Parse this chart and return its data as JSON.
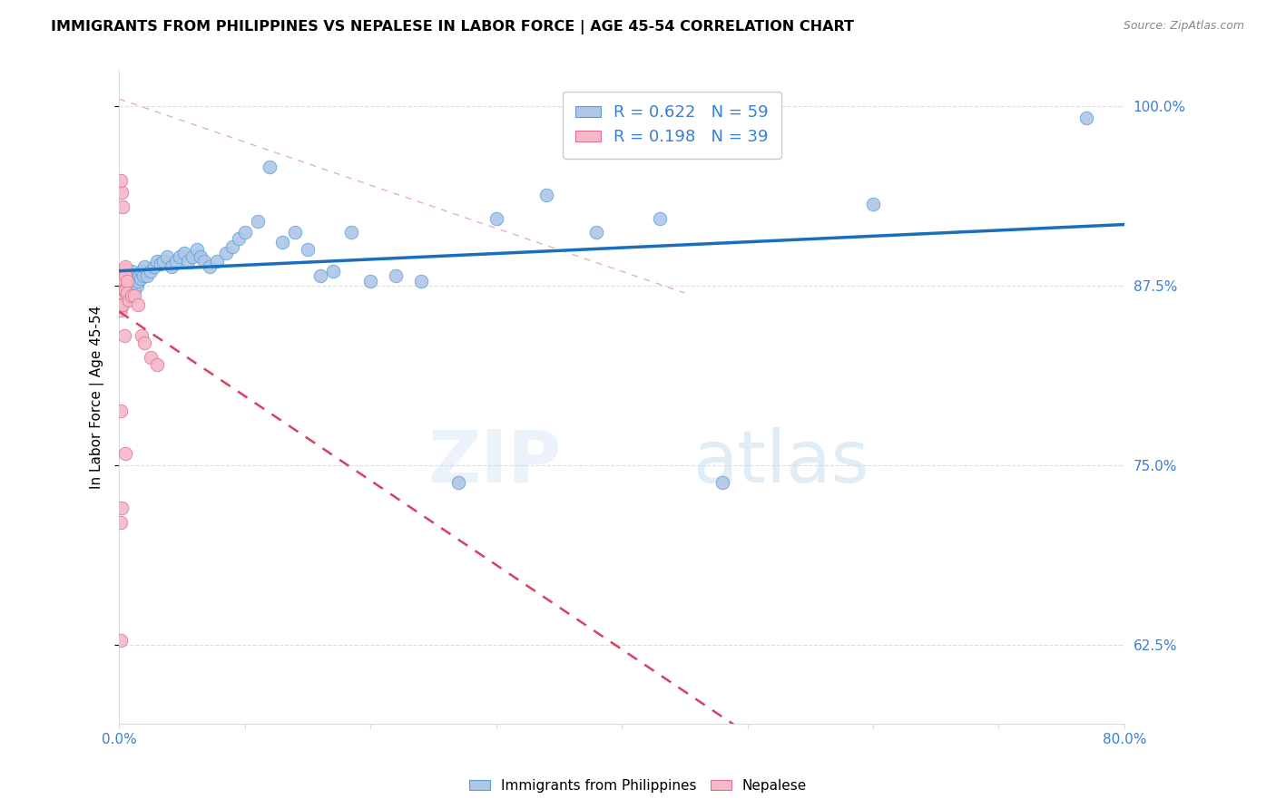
{
  "title": "IMMIGRANTS FROM PHILIPPINES VS NEPALESE IN LABOR FORCE | AGE 45-54 CORRELATION CHART",
  "source": "Source: ZipAtlas.com",
  "ylabel": "In Labor Force | Age 45-54",
  "xlim": [
    0.0,
    0.8
  ],
  "ylim": [
    0.57,
    1.025
  ],
  "yticks": [
    0.625,
    0.75,
    0.875,
    1.0
  ],
  "ytick_labels": [
    "62.5%",
    "75.0%",
    "87.5%",
    "100.0%"
  ],
  "xtick_positions": [
    0.0,
    0.1,
    0.2,
    0.3,
    0.4,
    0.5,
    0.6,
    0.7,
    0.8
  ],
  "xtick_labels": [
    "0.0%",
    "",
    "",
    "",
    "",
    "",
    "",
    "",
    "80.0%"
  ],
  "blue_R": 0.622,
  "blue_N": 59,
  "pink_R": 0.198,
  "pink_N": 39,
  "blue_scatter_color": "#aec6e8",
  "blue_edge_color": "#5a9fd4",
  "pink_scatter_color": "#f5b8c8",
  "pink_edge_color": "#e07090",
  "blue_line_color": "#1a6fbd",
  "pink_line_color": "#d94060",
  "diag_line_color": "#e8b0b8",
  "grid_color": "#dddddd",
  "legend_label_blue": "Immigrants from Philippines",
  "legend_label_pink": "Nepalese",
  "blue_x": [
    0.003,
    0.004,
    0.005,
    0.006,
    0.007,
    0.008,
    0.009,
    0.01,
    0.011,
    0.012,
    0.013,
    0.014,
    0.015,
    0.016,
    0.017,
    0.018,
    0.019,
    0.02,
    0.022,
    0.025,
    0.028,
    0.03,
    0.033,
    0.035,
    0.038,
    0.042,
    0.045,
    0.048,
    0.052,
    0.055,
    0.058,
    0.062,
    0.065,
    0.068,
    0.072,
    0.078,
    0.085,
    0.09,
    0.095,
    0.1,
    0.11,
    0.12,
    0.13,
    0.14,
    0.15,
    0.16,
    0.17,
    0.185,
    0.2,
    0.22,
    0.24,
    0.27,
    0.3,
    0.34,
    0.38,
    0.43,
    0.48,
    0.6,
    0.77
  ],
  "blue_y": [
    0.878,
    0.88,
    0.875,
    0.872,
    0.878,
    0.88,
    0.883,
    0.885,
    0.878,
    0.872,
    0.88,
    0.875,
    0.878,
    0.882,
    0.88,
    0.885,
    0.882,
    0.888,
    0.882,
    0.885,
    0.888,
    0.892,
    0.89,
    0.892,
    0.895,
    0.888,
    0.892,
    0.895,
    0.898,
    0.892,
    0.895,
    0.9,
    0.895,
    0.892,
    0.888,
    0.892,
    0.898,
    0.902,
    0.908,
    0.912,
    0.92,
    0.958,
    0.905,
    0.912,
    0.9,
    0.882,
    0.885,
    0.912,
    0.878,
    0.882,
    0.878,
    0.738,
    0.922,
    0.938,
    0.912,
    0.922,
    0.738,
    0.932,
    0.992
  ],
  "pink_x": [
    0.001,
    0.001,
    0.001,
    0.001,
    0.001,
    0.002,
    0.002,
    0.002,
    0.002,
    0.002,
    0.003,
    0.003,
    0.003,
    0.003,
    0.004,
    0.004,
    0.004,
    0.005,
    0.005,
    0.005,
    0.006,
    0.006,
    0.008,
    0.01,
    0.012,
    0.015,
    0.018,
    0.02,
    0.025,
    0.03,
    0.003,
    0.004,
    0.005,
    0.002,
    0.002,
    0.001,
    0.001,
    0.001,
    0.001
  ],
  "pink_y": [
    0.882,
    0.878,
    0.873,
    0.868,
    0.858,
    0.885,
    0.88,
    0.875,
    0.87,
    0.862,
    0.88,
    0.875,
    0.87,
    0.862,
    0.885,
    0.878,
    0.872,
    0.888,
    0.882,
    0.872,
    0.878,
    0.87,
    0.865,
    0.868,
    0.868,
    0.862,
    0.84,
    0.835,
    0.825,
    0.82,
    0.93,
    0.84,
    0.758,
    0.94,
    0.72,
    0.948,
    0.788,
    0.71,
    0.628
  ]
}
